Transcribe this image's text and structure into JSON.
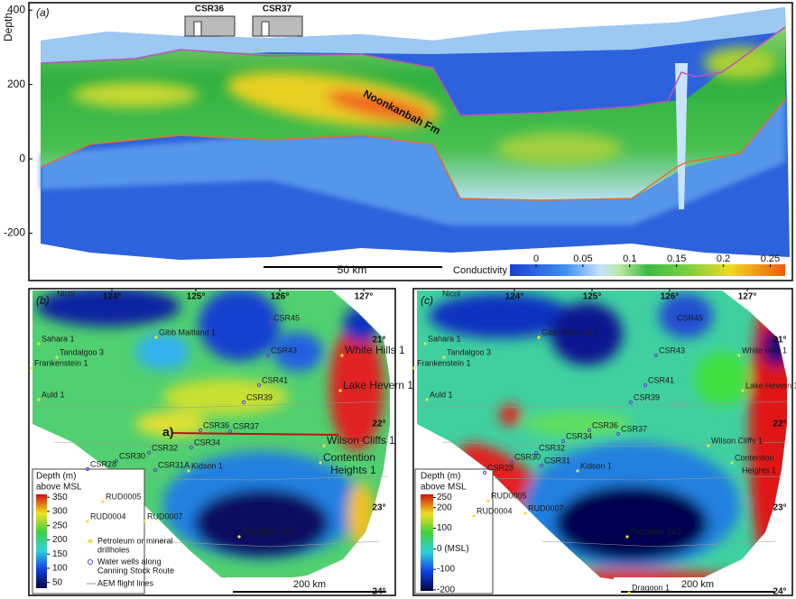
{
  "panel_a": {
    "label": "(a)",
    "y_axis_label": "Depth",
    "ylim": [
      -320,
      415
    ],
    "yticks": [
      400,
      200,
      0,
      -200
    ],
    "wells": [
      "CSR36",
      "CSR37"
    ],
    "formation": "Noonkanbah Fm",
    "scale_bar": "50 km",
    "colorbar": {
      "title": "Conductivity",
      "lim": [
        -0.028,
        0.266
      ],
      "ticks": [
        0,
        0.05,
        0.1,
        0.15,
        0.2,
        0.25
      ]
    }
  },
  "panel_b": {
    "label": "(b)",
    "lon_ticks": [
      {
        "value": 124,
        "label": "124°"
      },
      {
        "value": 125,
        "label": "125°"
      },
      {
        "value": 126,
        "label": "126°"
      },
      {
        "value": 127,
        "label": "127°"
      }
    ],
    "lat_ticks": [
      {
        "value": 21,
        "label": "21°"
      },
      {
        "value": 22,
        "label": "22°"
      },
      {
        "value": 23,
        "label": "23°"
      },
      {
        "value": 24,
        "label": "24°"
      }
    ],
    "places": [
      "Nicol",
      "Sahara 1",
      "Tandalgoo 3",
      "Frankenstein 1",
      "Auld 1",
      "Gibb Maitland 1",
      "CSR45",
      "CSR43",
      "CSR41",
      "CSR39",
      "CSR36",
      "CSR37",
      "CSR34",
      "CSR32",
      "CSR30",
      "CSR31A",
      "CSR28",
      "Kidson 1",
      "RUD0005",
      "RUD0004",
      "RUD0007",
      "Petrolene 1&2",
      "White Hills 1",
      "Lake Hevern 1",
      "Wilson Cliffs 1",
      "Contention",
      "Heights 1"
    ],
    "section_marker": "a)",
    "legend": {
      "title": [
        "Depth (m)",
        "above MSL"
      ],
      "lim": [
        30,
        360
      ],
      "ticks": [
        350,
        300,
        250,
        200,
        150,
        100,
        50
      ],
      "items": [
        [
          "Petroleum or mineral",
          "drillholes"
        ],
        [
          "Water wells along",
          "Canning Stock Route"
        ],
        [
          "AEM flight lines"
        ]
      ]
    },
    "scale_bar": "200 km"
  },
  "panel_c": {
    "label": "(c)",
    "lon_ticks": [
      {
        "value": 124,
        "label": "124°"
      },
      {
        "value": 125,
        "label": "125°"
      },
      {
        "value": 126,
        "label": "126°"
      },
      {
        "value": 127,
        "label": "127°"
      }
    ],
    "lat_ticks": [
      {
        "value": 21,
        "label": "21°"
      },
      {
        "value": 22,
        "label": "22°"
      },
      {
        "value": 23,
        "label": "23°"
      },
      {
        "value": 24,
        "label": "24°"
      }
    ],
    "places": [
      "Nicol",
      "Sahara 1",
      "Tandalgoo 3",
      "Frankenstein 1",
      "Auld 1",
      "Gibb Maitland 1",
      "CSR45",
      "CSR43",
      "CSR41",
      "CSR39",
      "CSR36",
      "CSR37",
      "CSR34",
      "CSR32",
      "CSR30",
      "CSR31",
      "CSR28",
      "Kidson 1",
      "RUD0005",
      "RUD0004",
      "RUD0007",
      "Petrolene 1&2",
      "White Hills 1",
      "Lake Hevern 1",
      "Wilson Cliffs 1",
      "Contention",
      "Heights 1",
      "Dragoon 1"
    ],
    "legend": {
      "title": [
        "Depth (m)",
        "above MSL"
      ],
      "lim": [
        -205,
        265
      ],
      "ticks": [
        250,
        200,
        100,
        {
          "value": 0,
          "label": "0 (MSL)"
        },
        -100,
        -200
      ]
    },
    "scale_bar": "200 km"
  }
}
